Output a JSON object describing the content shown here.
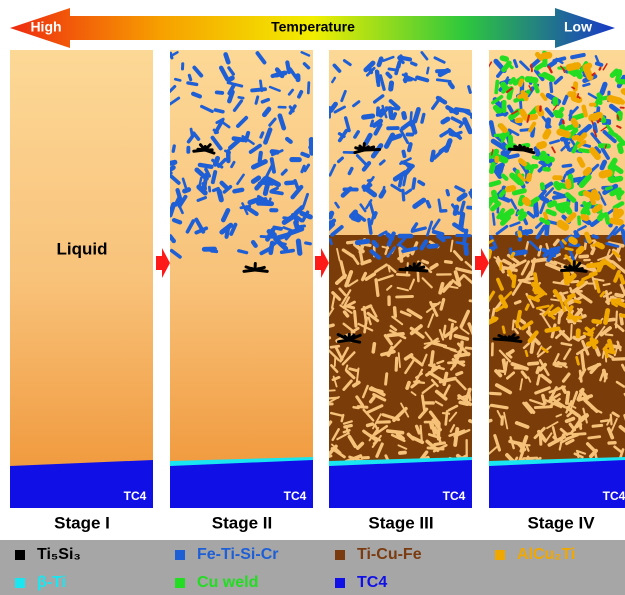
{
  "temperature_bar": {
    "high": "High",
    "title": "Temperature",
    "low": "Low"
  },
  "panels": [
    {
      "label": "Liquid",
      "substrate": "TC4",
      "stage": "Stage I"
    },
    {
      "substrate": "TC4",
      "stage": "Stage II"
    },
    {
      "substrate": "TC4",
      "stage": "Stage III"
    },
    {
      "substrate": "TC4",
      "stage": "Stage IV"
    }
  ],
  "legend": [
    {
      "label": "Ti₅Si₃",
      "color": "#000000"
    },
    {
      "label": "Fe-Ti-Si-Cr",
      "color": "#1f5fd6"
    },
    {
      "label": "Ti-Cu-Fe",
      "color": "#7a3b10"
    },
    {
      "label": "AlCu₂Ti",
      "color": "#f0a800"
    },
    {
      "label": "β-Ti",
      "color": "#19e6f0"
    },
    {
      "label": "Cu weld",
      "color": "#22dd22"
    },
    {
      "label": "TC4",
      "color": "#1010e6"
    }
  ]
}
